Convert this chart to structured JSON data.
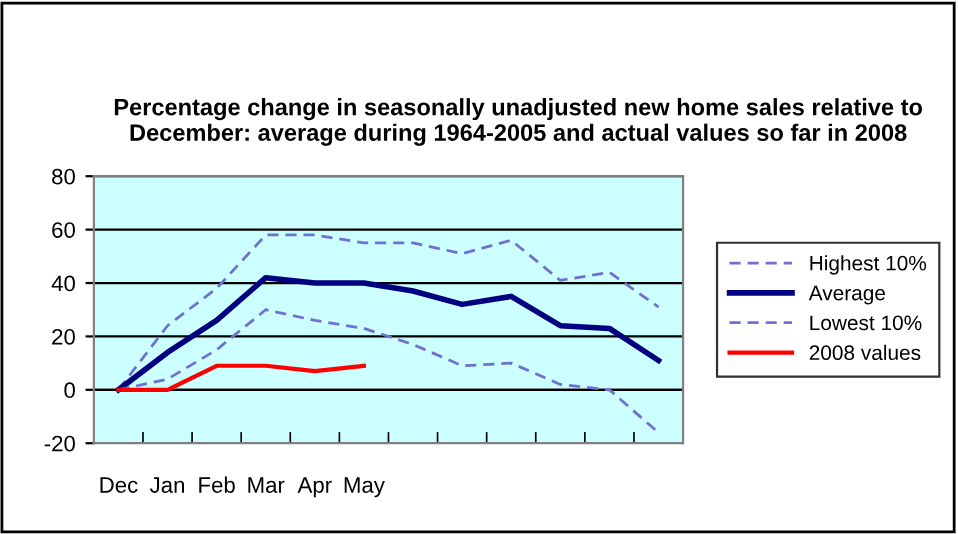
{
  "chart_data": {
    "type": "line",
    "title": "Percentage change in seasonally unadjusted new home sales relative to December: average during 1964-2005 and actual values so far in 2008",
    "categories": [
      "Dec",
      "Jan",
      "Feb",
      "Mar",
      "Apr",
      "May",
      null,
      null,
      null,
      null,
      null,
      null
    ],
    "series": [
      {
        "name": "Highest 10%",
        "color": "#7070d0",
        "line_style": "dashed",
        "values": [
          0,
          24,
          38,
          58,
          58,
          55,
          55,
          51,
          56,
          41,
          44,
          31
        ]
      },
      {
        "name": "Average",
        "color": "#000080",
        "line_style": "solid",
        "values": [
          0,
          14,
          26,
          42,
          40,
          40,
          37,
          32,
          35,
          24,
          23,
          11
        ]
      },
      {
        "name": "Lowest 10%",
        "color": "#7070d0",
        "line_style": "dashed",
        "values": [
          0,
          4,
          15,
          30,
          26,
          23,
          17,
          9,
          10,
          2,
          0,
          -16
        ]
      },
      {
        "name": "2008 values",
        "color": "#ff0000",
        "line_style": "solid",
        "values": [
          0,
          0,
          9,
          9,
          7,
          9,
          null,
          null,
          null,
          null,
          null,
          null
        ]
      }
    ],
    "ylim": [
      -20,
      80
    ],
    "yticks": [
      -20,
      0,
      20,
      40,
      60,
      80
    ],
    "grid": "y",
    "legend": "right",
    "marker": "none"
  }
}
